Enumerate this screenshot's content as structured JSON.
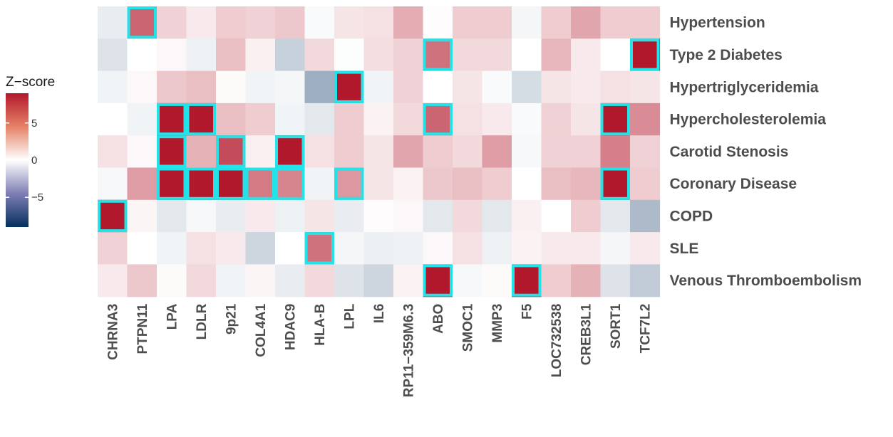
{
  "chart_data": {
    "type": "heatmap",
    "title": "",
    "xlabel": "",
    "ylabel": "",
    "rows": [
      "Hypertension",
      "Type 2 Diabetes",
      "Hypertriglyceridemia",
      "Hypercholesterolemia",
      "Carotid Stenosis",
      "Coronary Disease",
      "COPD",
      "SLE",
      "Venous Thromboembolism"
    ],
    "columns": [
      "CHRNA3",
      "PTPN11",
      "LPA",
      "LDLR",
      "9p21",
      "COL4A1",
      "HDAC9",
      "HLA-B",
      "LPL",
      "IL6",
      "RP11−359M6.3",
      "ABO",
      "SMOC1",
      "MMP3",
      "F5",
      "LOC732538",
      "CREB3L1",
      "SORT1",
      "TCF7L2"
    ],
    "values": [
      [
        -0.8,
        6.0,
        1.8,
        0.8,
        2.0,
        1.8,
        2.2,
        -0.2,
        1.0,
        1.2,
        3.2,
        0.1,
        2.0,
        2.0,
        -0.4,
        2.0,
        3.5,
        2.0,
        2.0
      ],
      [
        -1.2,
        0.0,
        0.3,
        -0.6,
        2.5,
        0.6,
        -2.0,
        1.5,
        -0.1,
        1.3,
        1.8,
        5.5,
        1.5,
        1.5,
        0.0,
        2.8,
        0.8,
        0.0,
        9.0
      ],
      [
        -0.5,
        0.3,
        2.2,
        2.5,
        0.2,
        -0.5,
        -0.4,
        -3.5,
        9.0,
        -0.5,
        1.8,
        0.0,
        1.0,
        -0.2,
        -1.5,
        1.0,
        0.8,
        1.2,
        1.0
      ],
      [
        0.0,
        -0.5,
        9.0,
        9.0,
        2.5,
        2.0,
        -0.5,
        -1.0,
        2.0,
        0.5,
        1.5,
        6.0,
        1.2,
        0.8,
        -0.2,
        1.8,
        1.0,
        9.0,
        4.5
      ],
      [
        1.2,
        0.3,
        9.0,
        3.0,
        7.0,
        0.6,
        9.0,
        1.2,
        2.0,
        1.0,
        3.5,
        2.0,
        1.5,
        3.8,
        -0.3,
        1.8,
        1.8,
        5.0,
        1.8
      ],
      [
        -0.3,
        3.8,
        9.0,
        9.0,
        9.0,
        5.2,
        4.8,
        -0.5,
        4.0,
        1.0,
        0.5,
        2.2,
        2.5,
        2.0,
        0.0,
        2.5,
        2.8,
        9.0,
        2.0
      ],
      [
        9.0,
        0.4,
        -1.0,
        -0.3,
        -0.8,
        0.8,
        -0.6,
        1.0,
        -0.8,
        0.1,
        0.3,
        -1.0,
        1.5,
        -1.0,
        0.6,
        0.0,
        2.0,
        -1.0,
        -3.0
      ],
      [
        1.8,
        0.0,
        -0.5,
        1.2,
        0.8,
        -1.8,
        0.0,
        5.5,
        -0.4,
        -0.7,
        -0.6,
        0.3,
        1.2,
        -0.6,
        0.5,
        0.8,
        0.8,
        -0.4,
        0.8
      ],
      [
        0.8,
        2.2,
        0.2,
        1.5,
        -0.5,
        0.4,
        -0.8,
        1.5,
        -1.2,
        -1.8,
        0.5,
        9.0,
        -0.3,
        0.2,
        9.0,
        2.0,
        3.0,
        -1.2,
        -2.2
      ]
    ],
    "highlighted_cells": [
      [
        0,
        1
      ],
      [
        1,
        11
      ],
      [
        1,
        18
      ],
      [
        2,
        8
      ],
      [
        3,
        2
      ],
      [
        3,
        3
      ],
      [
        3,
        11
      ],
      [
        3,
        17
      ],
      [
        4,
        2
      ],
      [
        4,
        4
      ],
      [
        4,
        6
      ],
      [
        5,
        2
      ],
      [
        5,
        3
      ],
      [
        5,
        4
      ],
      [
        5,
        5
      ],
      [
        5,
        6
      ],
      [
        5,
        8
      ],
      [
        5,
        17
      ],
      [
        6,
        0
      ],
      [
        7,
        7
      ],
      [
        8,
        11
      ],
      [
        8,
        14
      ]
    ],
    "legend": {
      "title": "Z−score",
      "ticks": [
        5,
        0,
        -5
      ],
      "tick_labels": [
        "5",
        "0",
        "−5"
      ],
      "range": [
        -9,
        9
      ],
      "position": "left"
    },
    "colors": {
      "high": "#B2182B",
      "mid": "#FFFFFF",
      "low": "#05305F",
      "highlight": "#22E3E8",
      "label": "#4D4D4D"
    }
  }
}
